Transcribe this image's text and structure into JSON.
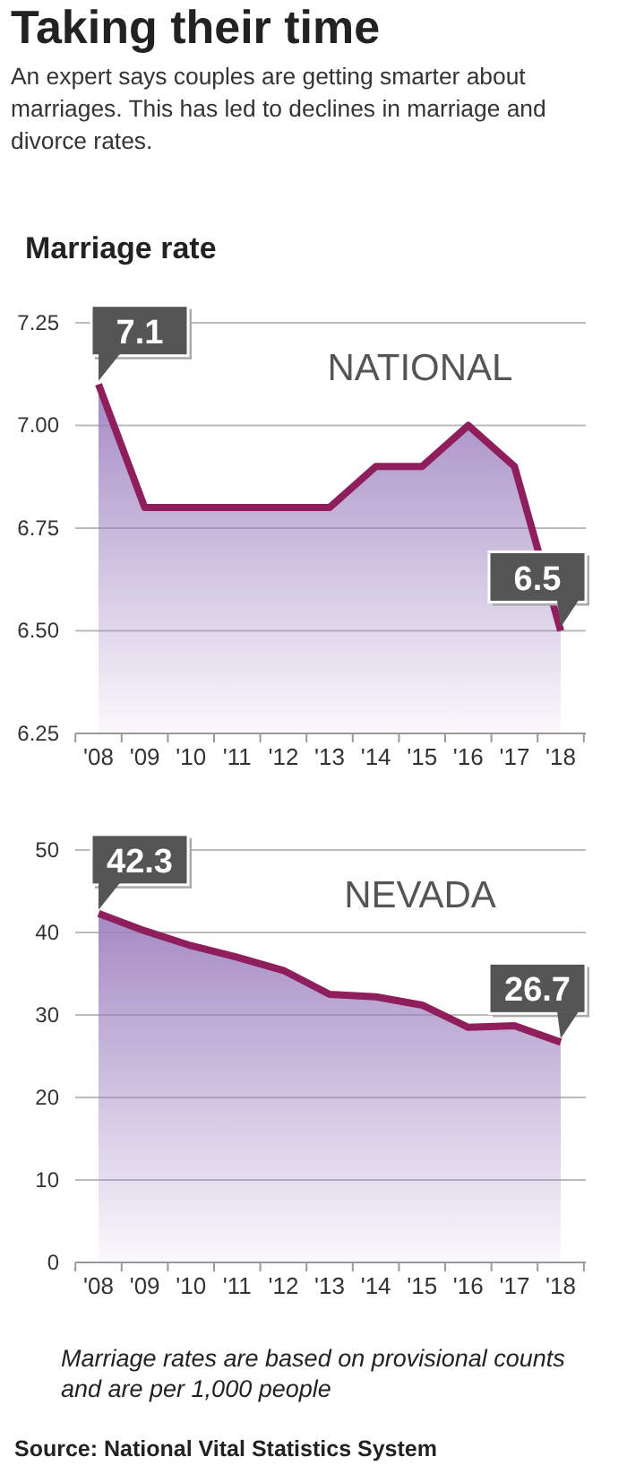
{
  "chart_data": [
    {
      "type": "area",
      "title": "Taking their time",
      "subtitle": "An expert says couples are getting smarter about marriages. This has led to declines in marriage and divorce rates.",
      "ylabel": "Marriage rate",
      "categories": [
        "'08",
        "'09",
        "'10",
        "'11",
        "'12",
        "'13",
        "'14",
        "'15",
        "'16",
        "'17",
        "'18"
      ],
      "series": [
        {
          "name": "NATIONAL",
          "color": "#8e1f5c",
          "values": [
            7.1,
            6.8,
            6.8,
            6.8,
            6.8,
            6.8,
            6.9,
            6.9,
            7.0,
            6.9,
            6.5
          ],
          "value_labels": [
            "7.1",
            null,
            null,
            null,
            null,
            null,
            null,
            null,
            null,
            null,
            "6.5"
          ]
        }
      ],
      "ylim": [
        6.25,
        7.25
      ],
      "yticks": [
        6.25,
        {
          "value": 6.5,
          "label": "6.50"
        },
        6.75,
        {
          "value": 7.0,
          "label": "7.00"
        },
        7.25
      ],
      "grid": "y"
    },
    {
      "type": "area",
      "categories": [
        "'08",
        "'09",
        "'10",
        "'11",
        "'12",
        "'13",
        "'14",
        "'15",
        "'16",
        "'17",
        "'18"
      ],
      "series": [
        {
          "name": "NEVADA",
          "color": "#8e1f5c",
          "values": [
            42.3,
            40.2,
            38.4,
            37.0,
            35.4,
            32.5,
            32.2,
            31.2,
            28.5,
            28.7,
            26.7
          ],
          "value_labels": [
            "42.3",
            null,
            null,
            null,
            null,
            null,
            null,
            null,
            null,
            null,
            "26.7"
          ]
        }
      ],
      "ylim": [
        0,
        50
      ],
      "yticks": [
        0,
        10,
        20,
        30,
        40,
        50
      ],
      "grid": "y",
      "annotations": [
        "Marriage rates are based on provisional counts and are per 1,000 people",
        "Source: National Vital Statistics System"
      ]
    }
  ]
}
